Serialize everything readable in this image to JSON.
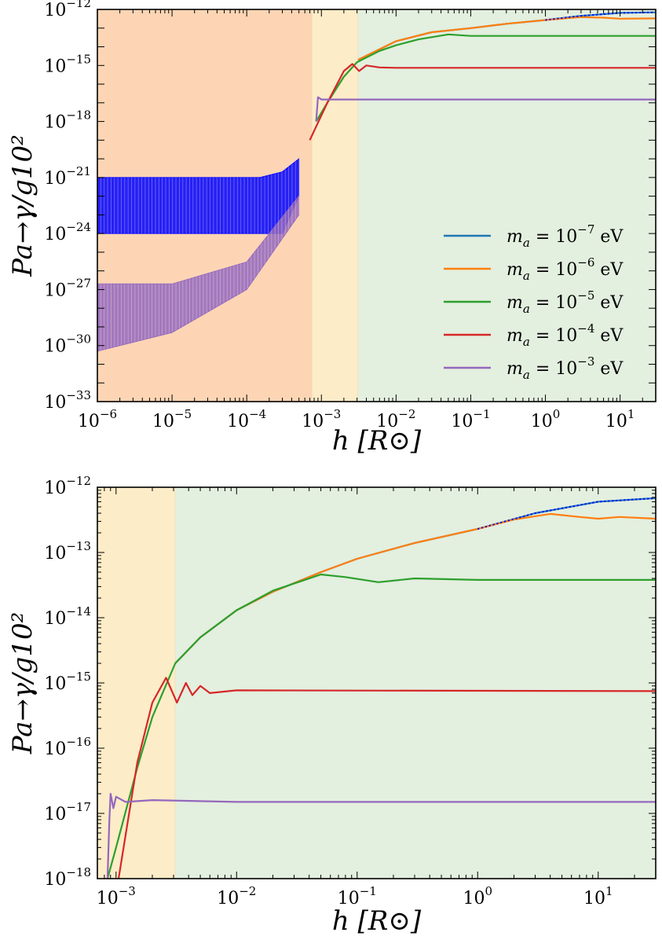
{
  "chart_data": [
    {
      "type": "line",
      "panel": "top",
      "xscale": "log",
      "yscale": "log",
      "xlim": [
        1e-06,
        30
      ],
      "ylim": [
        1e-33,
        1e-12
      ],
      "xlabel": "h [R⊙]",
      "ylabel": "Pa→γ/g10²",
      "x_ticks": [
        {
          "value": 1e-06,
          "base": "10",
          "exp": "−6"
        },
        {
          "value": 1e-05,
          "base": "10",
          "exp": "−5"
        },
        {
          "value": 0.0001,
          "base": "10",
          "exp": "−4"
        },
        {
          "value": 0.001,
          "base": "10",
          "exp": "−3"
        },
        {
          "value": 0.01,
          "base": "10",
          "exp": "−2"
        },
        {
          "value": 0.1,
          "base": "10",
          "exp": "−1"
        },
        {
          "value": 1,
          "base": "10",
          "exp": "0"
        },
        {
          "value": 10,
          "base": "10",
          "exp": "1"
        }
      ],
      "y_ticks": [
        {
          "value": 1e-33,
          "base": "10",
          "exp": "−33"
        },
        {
          "value": 1e-30,
          "base": "10",
          "exp": "−30"
        },
        {
          "value": 1e-27,
          "base": "10",
          "exp": "−27"
        },
        {
          "value": 1e-24,
          "base": "10",
          "exp": "−24"
        },
        {
          "value": 1e-21,
          "base": "10",
          "exp": "−21"
        },
        {
          "value": 1e-18,
          "base": "10",
          "exp": "−18"
        },
        {
          "value": 1e-15,
          "base": "10",
          "exp": "−15"
        },
        {
          "value": 1e-12,
          "base": "10",
          "exp": "−12"
        }
      ],
      "regions": [
        {
          "name": "region-photosphere",
          "x": [
            1e-06,
            0.00075
          ],
          "color": "#fdd5b4"
        },
        {
          "name": "region-chromosphere",
          "x": [
            0.00075,
            0.0031
          ],
          "color": "#fdecc8"
        },
        {
          "name": "region-corona",
          "x": [
            0.0031,
            30
          ],
          "color": "#e3efdf"
        }
      ],
      "legend": {
        "placement": "lower-right",
        "entries": [
          {
            "label": "m",
            "sub": "a",
            "mid": " = 10",
            "exp": "−7",
            "unit": " eV",
            "color": "#1f77b4"
          },
          {
            "label": "m",
            "sub": "a",
            "mid": " = 10",
            "exp": "−6",
            "unit": " eV",
            "color": "#ff7f0e"
          },
          {
            "label": "m",
            "sub": "a",
            "mid": " = 10",
            "exp": "−5",
            "unit": " eV",
            "color": "#2ca02c"
          },
          {
            "label": "m",
            "sub": "a",
            "mid": " = 10",
            "exp": "−4",
            "unit": " eV",
            "color": "#d62728"
          },
          {
            "label": "m",
            "sub": "a",
            "mid": " = 10",
            "exp": "−3",
            "unit": " eV",
            "color": "#9467bd"
          }
        ]
      },
      "series": [
        {
          "name": "ma=1e-7 eV",
          "color": "#1f77b4",
          "points": [
            [
              0.0031,
              2e-15
            ],
            [
              0.01,
              2e-14
            ],
            [
              0.03,
              6e-14
            ],
            [
              0.1,
              1e-13
            ],
            [
              0.3,
              1.7e-13
            ],
            [
              1,
              2.7e-13
            ],
            [
              3,
              4.5e-13
            ],
            [
              10,
              6.5e-13
            ],
            [
              30,
              7e-13
            ]
          ]
        },
        {
          "name": "ma=1e-6 eV",
          "color": "#ff7f0e",
          "points": [
            [
              0.0031,
              2e-15
            ],
            [
              0.01,
              2e-14
            ],
            [
              0.03,
              6e-14
            ],
            [
              0.1,
              1e-13
            ],
            [
              0.3,
              1.7e-13
            ],
            [
              1,
              2.7e-13
            ],
            [
              3,
              3.9e-13
            ],
            [
              6,
              3.6e-13
            ],
            [
              10,
              3.2e-13
            ],
            [
              30,
              3.3e-13
            ]
          ]
        },
        {
          "name": "ma=1e-5 eV",
          "color": "#2ca02c",
          "points": [
            [
              0.00085,
              1e-18
            ],
            [
              0.0012,
              1e-17
            ],
            [
              0.002,
              2.5e-16
            ],
            [
              0.003,
              1.5e-15
            ],
            [
              0.006,
              6e-15
            ],
            [
              0.01,
              1.2e-14
            ],
            [
              0.02,
              2.5e-14
            ],
            [
              0.05,
              4.6e-14
            ],
            [
              0.1,
              3.8e-14
            ],
            [
              1,
              3.8e-14
            ],
            [
              30,
              3.8e-14
            ]
          ]
        },
        {
          "name": "ma=1e-4 eV",
          "color": "#d62728",
          "points": [
            [
              0.0007,
              1e-19
            ],
            [
              0.0012,
              1e-17
            ],
            [
              0.002,
              5e-16
            ],
            [
              0.0026,
              1.2e-15
            ],
            [
              0.0032,
              5e-16
            ],
            [
              0.004,
              1e-15
            ],
            [
              0.006,
              7.8e-16
            ],
            [
              0.01,
              7.5e-16
            ],
            [
              30,
              7.5e-16
            ]
          ]
        },
        {
          "name": "ma=1e-3 eV",
          "color": "#9467bd",
          "points": [
            [
              0.00085,
              1e-18
            ],
            [
              0.0009,
              2e-17
            ],
            [
              0.001,
              1.5e-17
            ],
            [
              0.01,
              1.5e-17
            ],
            [
              30,
              1.5e-17
            ]
          ]
        }
      ],
      "band_series": [
        {
          "name": "ma=1e-7 eV (photosphere)",
          "color": "#0000ff",
          "x": [
            1e-06,
            0.00015,
            0.0003,
            0.0005
          ],
          "upper": [
            1e-21,
            1e-21,
            2e-21,
            1e-20
          ],
          "lower": [
            1e-24,
            1e-24,
            1e-24,
            1e-22
          ]
        },
        {
          "name": "ma=1e-3 eV (photosphere)",
          "color": "#9467bd",
          "x": [
            1e-06,
            1e-05,
            0.0001,
            0.0005
          ],
          "upper": [
            2e-27,
            2e-27,
            3e-26,
            1e-22
          ],
          "lower": [
            5e-31,
            5e-30,
            1e-27,
            1e-23
          ]
        }
      ]
    },
    {
      "type": "line",
      "panel": "bottom",
      "xscale": "log",
      "yscale": "log",
      "xlim": [
        0.0007,
        30
      ],
      "ylim": [
        1e-18,
        1e-12
      ],
      "xlabel": "h [R⊙]",
      "ylabel": "Pa→γ/g10²",
      "x_ticks": [
        {
          "value": 0.001,
          "base": "10",
          "exp": "−3"
        },
        {
          "value": 0.01,
          "base": "10",
          "exp": "−2"
        },
        {
          "value": 0.1,
          "base": "10",
          "exp": "−1"
        },
        {
          "value": 1,
          "base": "10",
          "exp": "0"
        },
        {
          "value": 10,
          "base": "10",
          "exp": "1"
        }
      ],
      "y_ticks": [
        {
          "value": 1e-18,
          "base": "10",
          "exp": "−18"
        },
        {
          "value": 1e-17,
          "base": "10",
          "exp": "−17"
        },
        {
          "value": 1e-16,
          "base": "10",
          "exp": "−16"
        },
        {
          "value": 1e-15,
          "base": "10",
          "exp": "−15"
        },
        {
          "value": 1e-14,
          "base": "10",
          "exp": "−14"
        },
        {
          "value": 1e-13,
          "base": "10",
          "exp": "−13"
        },
        {
          "value": 1e-12,
          "base": "10",
          "exp": "−12"
        }
      ],
      "regions": [
        {
          "name": "region-chromosphere",
          "x": [
            0.0007,
            0.0031
          ],
          "color": "#fdecc8"
        },
        {
          "name": "region-corona",
          "x": [
            0.0031,
            30
          ],
          "color": "#e3efdf"
        }
      ],
      "series": [
        {
          "name": "ma=1e-7 eV",
          "color": "#1f77b4",
          "points": [
            [
              0.0031,
              2e-15
            ],
            [
              0.005,
              5e-15
            ],
            [
              0.01,
              1.3e-14
            ],
            [
              0.02,
              2.5e-14
            ],
            [
              0.05,
              5e-14
            ],
            [
              0.1,
              8e-14
            ],
            [
              0.3,
              1.4e-13
            ],
            [
              1,
              2.3e-13
            ],
            [
              3,
              4e-13
            ],
            [
              10,
              6e-13
            ],
            [
              30,
              6.8e-13
            ]
          ]
        },
        {
          "name": "ma=1e-6 eV",
          "color": "#ff7f0e",
          "points": [
            [
              0.0031,
              2e-15
            ],
            [
              0.005,
              5e-15
            ],
            [
              0.01,
              1.3e-14
            ],
            [
              0.02,
              2.5e-14
            ],
            [
              0.05,
              5e-14
            ],
            [
              0.1,
              8e-14
            ],
            [
              0.3,
              1.4e-13
            ],
            [
              1,
              2.3e-13
            ],
            [
              2,
              3.2e-13
            ],
            [
              4,
              3.9e-13
            ],
            [
              7,
              3.5e-13
            ],
            [
              10,
              3.3e-13
            ],
            [
              15,
              3.5e-13
            ],
            [
              30,
              3.3e-13
            ]
          ]
        },
        {
          "name": "ma=1e-5 eV",
          "color": "#2ca02c",
          "points": [
            [
              0.00085,
              1e-18
            ],
            [
              0.001,
              3e-18
            ],
            [
              0.0015,
              5e-17
            ],
            [
              0.002,
              3e-16
            ],
            [
              0.0031,
              2e-15
            ],
            [
              0.005,
              5e-15
            ],
            [
              0.01,
              1.3e-14
            ],
            [
              0.02,
              2.6e-14
            ],
            [
              0.05,
              4.6e-14
            ],
            [
              0.08,
              4.2e-14
            ],
            [
              0.15,
              3.5e-14
            ],
            [
              0.3,
              4e-14
            ],
            [
              1,
              3.8e-14
            ],
            [
              30,
              3.8e-14
            ]
          ]
        },
        {
          "name": "ma=1e-4 eV",
          "color": "#d62728",
          "points": [
            [
              0.00105,
              1e-18
            ],
            [
              0.0015,
              6e-17
            ],
            [
              0.002,
              5e-16
            ],
            [
              0.0026,
              1.2e-15
            ],
            [
              0.0032,
              5e-16
            ],
            [
              0.0038,
              1e-15
            ],
            [
              0.0043,
              6.5e-16
            ],
            [
              0.005,
              9e-16
            ],
            [
              0.006,
              7e-16
            ],
            [
              0.01,
              7.7e-16
            ],
            [
              30,
              7.5e-16
            ]
          ]
        },
        {
          "name": "ma=1e-3 eV",
          "color": "#9467bd",
          "points": [
            [
              0.00085,
              1e-18
            ],
            [
              0.00088,
              8e-18
            ],
            [
              0.0009,
              2e-17
            ],
            [
              0.00095,
              1.2e-17
            ],
            [
              0.001,
              1.8e-17
            ],
            [
              0.0012,
              1.5e-17
            ],
            [
              0.002,
              1.6e-17
            ],
            [
              0.01,
              1.5e-17
            ],
            [
              30,
              1.5e-17
            ]
          ]
        }
      ]
    }
  ]
}
